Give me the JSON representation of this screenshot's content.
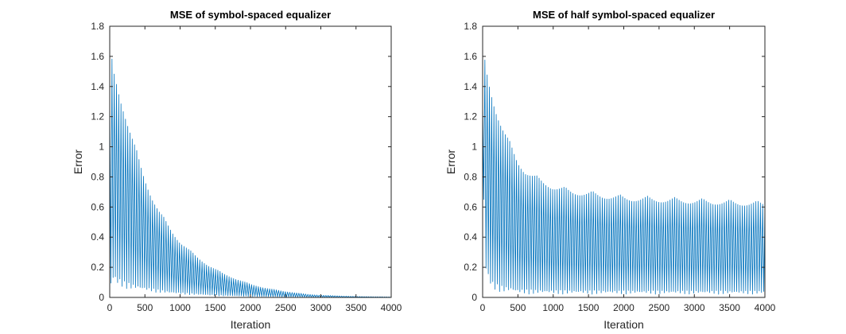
{
  "colors": {
    "series": "#0072BD",
    "axis": "#262626",
    "background": "#ffffff"
  },
  "chart_data": [
    {
      "type": "line",
      "title": "MSE of symbol-spaced equalizer",
      "xlabel": "Iteration",
      "ylabel": "Error",
      "xlim": [
        0,
        4000
      ],
      "ylim": [
        0,
        1.8
      ],
      "xticks": [
        0,
        500,
        1000,
        1500,
        2000,
        2500,
        3000,
        3500,
        4000
      ],
      "yticks": [
        0,
        0.2,
        0.4,
        0.6,
        0.8,
        1,
        1.2,
        1.4,
        1.6,
        1.8
      ],
      "xtick_labels": [
        "0",
        "500",
        "1000",
        "1500",
        "2000",
        "2500",
        "3000",
        "3500",
        "4000"
      ],
      "ytick_labels": [
        "0",
        "0.2",
        "0.4",
        "0.6",
        "0.8",
        "1",
        "1.2",
        "1.4",
        "1.6",
        "1.8"
      ],
      "grid": false,
      "legend": "none",
      "series": [
        {
          "style": "oscillating",
          "period": 32,
          "x": [
            0,
            25,
            50,
            100,
            150,
            200,
            300,
            400,
            500,
            600,
            700,
            800,
            900,
            1000,
            1200,
            1400,
            1600,
            1800,
            2000,
            2200,
            2500,
            2800,
            3000,
            3500,
            4000
          ],
          "upper_envelope": [
            1.35,
            1.63,
            1.55,
            1.47,
            1.38,
            1.3,
            1.12,
            0.95,
            0.81,
            0.69,
            0.59,
            0.51,
            0.44,
            0.38,
            0.29,
            0.22,
            0.165,
            0.125,
            0.09,
            0.065,
            0.04,
            0.022,
            0.015,
            0.006,
            0.003
          ],
          "lower_envelope": [
            0.0,
            0.08,
            0.1,
            0.08,
            0.07,
            0.06,
            0.05,
            0.045,
            0.04,
            0.035,
            0.03,
            0.026,
            0.022,
            0.02,
            0.016,
            0.012,
            0.009,
            0.007,
            0.005,
            0.004,
            0.003,
            0.002,
            0.001,
            0.0005,
            0.0002
          ]
        }
      ]
    },
    {
      "type": "line",
      "title": "MSE of half symbol-spaced equalizer",
      "xlabel": "Iteration",
      "ylabel": "Error",
      "xlim": [
        0,
        4000
      ],
      "ylim": [
        0,
        1.8
      ],
      "xticks": [
        0,
        500,
        1000,
        1500,
        2000,
        2500,
        3000,
        3500,
        4000
      ],
      "yticks": [
        0,
        0.2,
        0.4,
        0.6,
        0.8,
        1,
        1.2,
        1.4,
        1.6,
        1.8
      ],
      "xtick_labels": [
        "0",
        "500",
        "1000",
        "1500",
        "2000",
        "2500",
        "3000",
        "3500",
        "4000"
      ],
      "ytick_labels": [
        "0",
        "0.2",
        "0.4",
        "0.6",
        "0.8",
        "1",
        "1.2",
        "1.4",
        "1.6",
        "1.8"
      ],
      "grid": false,
      "legend": "none",
      "series": [
        {
          "style": "oscillating",
          "period": 32,
          "x": [
            0,
            25,
            50,
            100,
            150,
            200,
            300,
            400,
            500,
            600,
            800,
            1000,
            1200,
            1500,
            2000,
            2500,
            3000,
            3500,
            4000
          ],
          "upper_envelope": [
            1.3,
            1.62,
            1.55,
            1.45,
            1.36,
            1.28,
            1.14,
            1.02,
            0.93,
            0.87,
            0.8,
            0.76,
            0.73,
            0.71,
            0.68,
            0.67,
            0.66,
            0.65,
            0.64
          ],
          "lower_envelope": [
            1.2,
            0.3,
            0.15,
            0.08,
            0.05,
            0.04,
            0.03,
            0.03,
            0.02,
            0.02,
            0.02,
            0.02,
            0.02,
            0.02,
            0.02,
            0.02,
            0.02,
            0.02,
            0.02
          ]
        }
      ]
    }
  ]
}
